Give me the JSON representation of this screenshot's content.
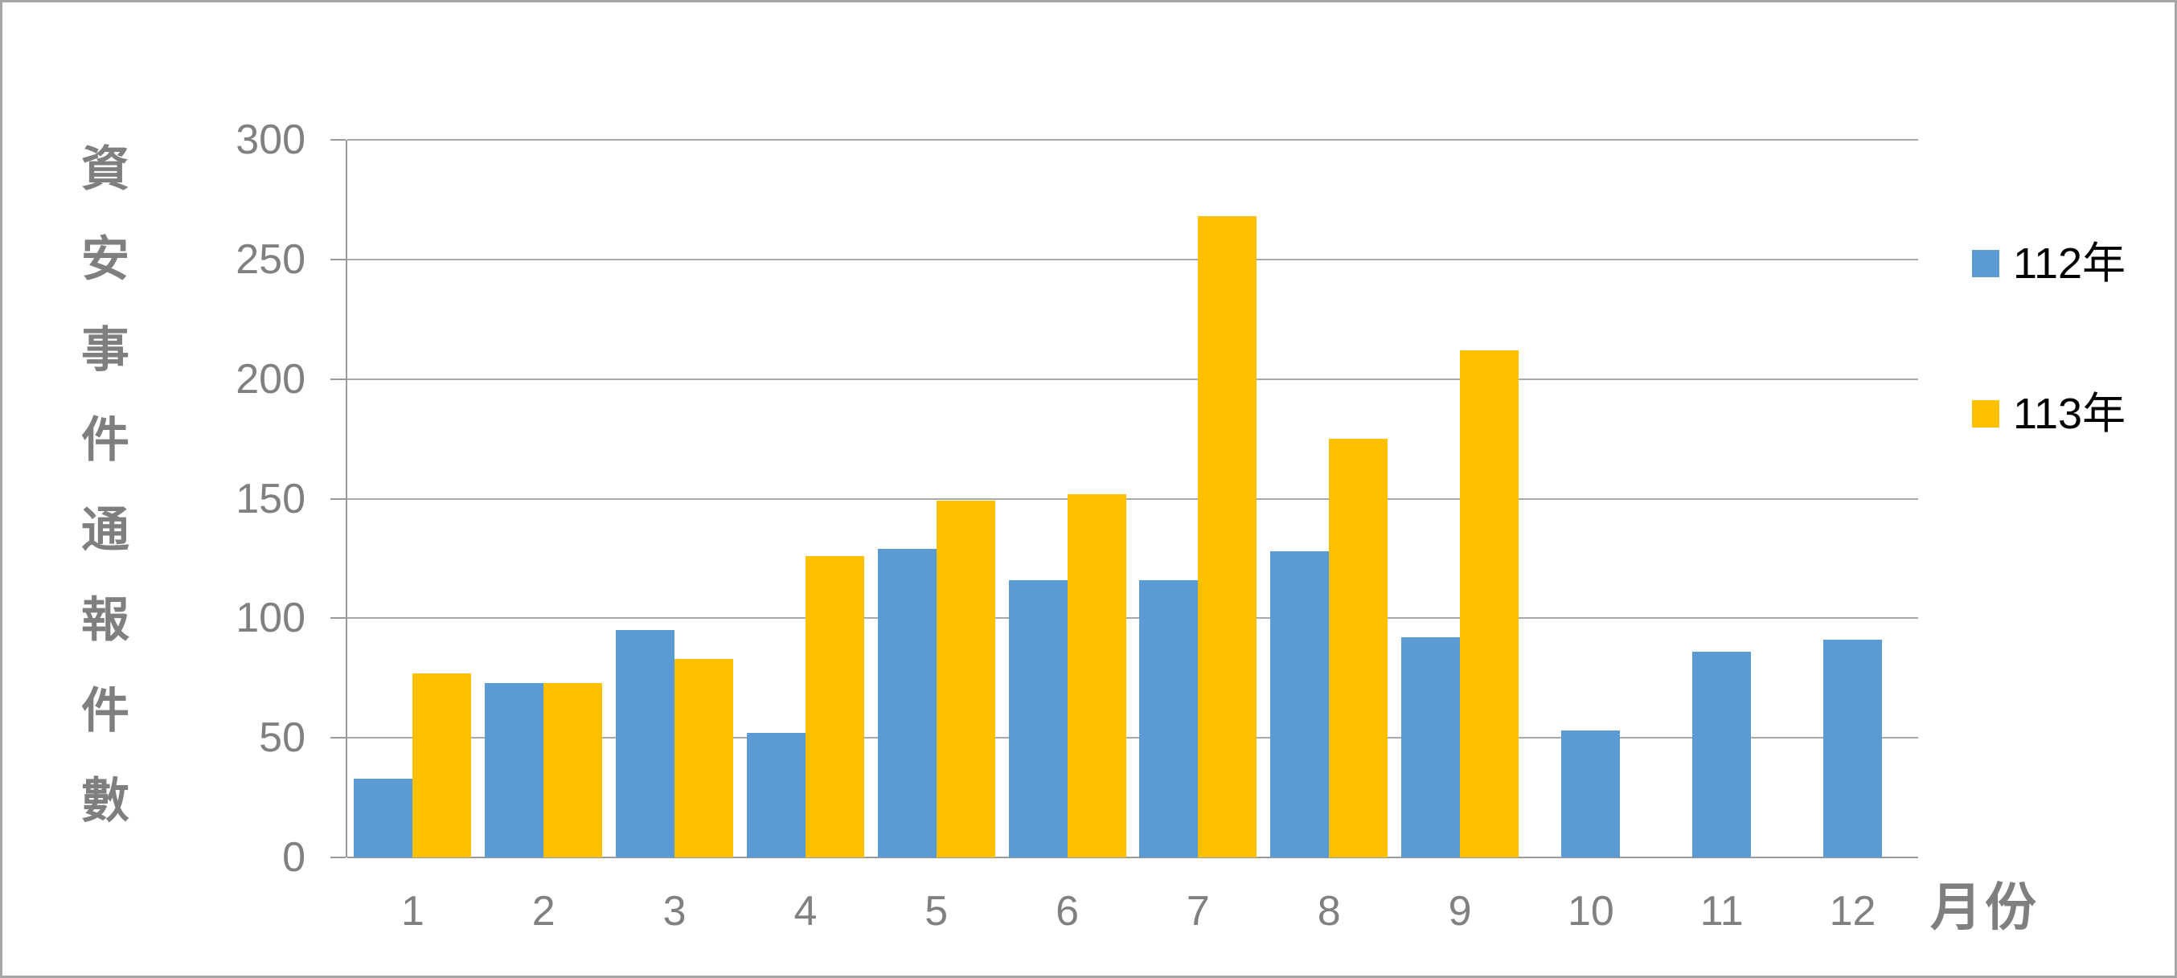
{
  "chart_data": {
    "type": "bar",
    "title": "",
    "categories": [
      "1",
      "2",
      "3",
      "4",
      "5",
      "6",
      "7",
      "8",
      "9",
      "10",
      "11",
      "12"
    ],
    "series": [
      {
        "name": "112年",
        "color": "#5B9BD5",
        "values": [
          33,
          73,
          95,
          52,
          129,
          116,
          116,
          128,
          92,
          53,
          86,
          91
        ]
      },
      {
        "name": "113年",
        "color": "#FFC000",
        "values": [
          77,
          73,
          83,
          126,
          149,
          152,
          268,
          175,
          212,
          null,
          null,
          null
        ]
      }
    ],
    "ylabel": "資安事件通報件數",
    "xlabel": "月份",
    "ylim": [
      0,
      300
    ],
    "y_ticks": [
      300,
      250,
      200,
      150,
      100,
      50,
      0
    ],
    "grid": "horizontal",
    "legend_position": "right",
    "axis_color": "#9A9A9A",
    "gridline_color": "#A9A9A9",
    "tick_label_color": "#808080",
    "axis_title_color": "#7F7F7F",
    "legend_text_color": "#000000"
  }
}
